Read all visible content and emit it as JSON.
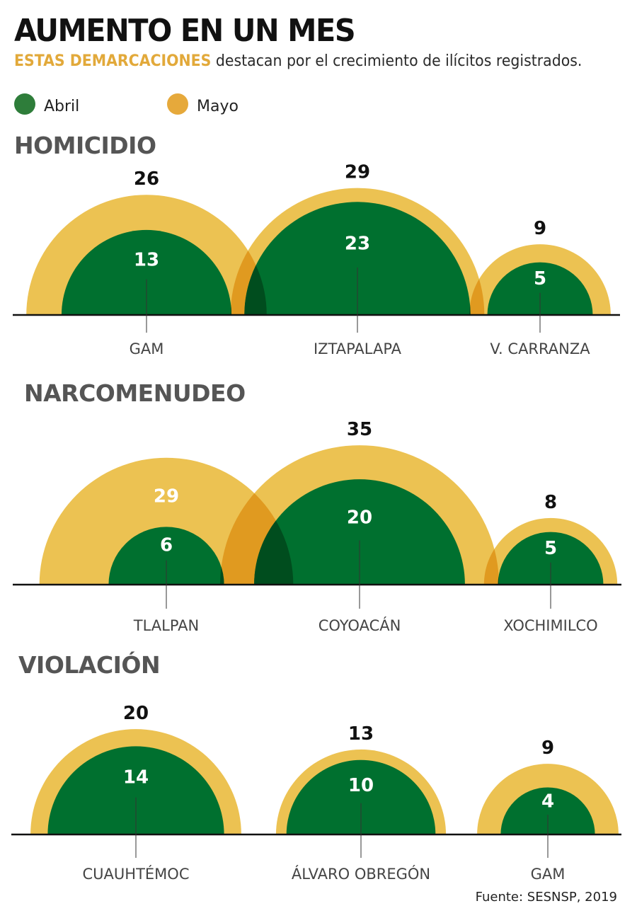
{
  "header": {
    "title": "AUMENTO EN UN MES",
    "subtitle_highlight": "ESTAS DEMARCACIONES",
    "subtitle_rest": " destacan por el crecimiento de ilícitos registrados."
  },
  "legend": [
    {
      "label": "Abril",
      "color": "#2e7d3a"
    },
    {
      "label": "Mayo",
      "color": "#e6a93b"
    }
  ],
  "source": "Fuente: SESNSP, 2019",
  "colors": {
    "abril": "#00702f",
    "mayo": "#ecc252",
    "overlap": "#e09a20",
    "overlap_green": "#004d1e",
    "axis": "#111111",
    "label_dark": "#111111",
    "label_light": "#ffffff",
    "category": "#444444"
  },
  "chart_data": [
    {
      "type": "semicircle-area",
      "title": "HOMICIDIO",
      "categories": [
        "GAM",
        "IZTAPALAPA",
        "V. CARRANZA"
      ],
      "series": [
        {
          "name": "Abril",
          "values": [
            13,
            23,
            5
          ]
        },
        {
          "name": "Mayo",
          "values": [
            26,
            29,
            9
          ]
        }
      ]
    },
    {
      "type": "semicircle-area",
      "title": "NARCOMENUDEO",
      "categories": [
        "TLALPAN",
        "COYOACÁN",
        "XOCHIMILCO"
      ],
      "series": [
        {
          "name": "Abril",
          "values": [
            6,
            20,
            5
          ]
        },
        {
          "name": "Mayo",
          "values": [
            29,
            35,
            8
          ]
        }
      ]
    },
    {
      "type": "semicircle-area",
      "title": "VIOLACIÓN",
      "categories": [
        "CUAUHTÉMOC",
        "ÁLVARO OBREGÓN",
        "GAM"
      ],
      "series": [
        {
          "name": "Abril",
          "values": [
            14,
            10,
            4
          ]
        },
        {
          "name": "Mayo",
          "values": [
            20,
            13,
            9
          ]
        }
      ]
    }
  ]
}
